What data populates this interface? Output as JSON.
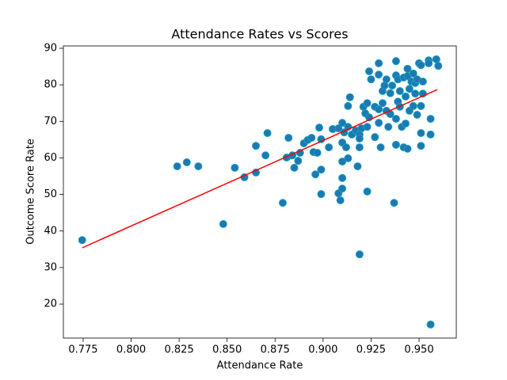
{
  "chart_data": {
    "type": "scatter",
    "title": "Attendance Rates vs Scores",
    "xlabel": "Attendance Rate",
    "ylabel": "Outcome Score Rate",
    "x": [
      0.7745,
      0.824,
      0.829,
      0.835,
      0.848,
      0.854,
      0.859,
      0.865,
      0.865,
      0.87,
      0.871,
      0.879,
      0.881,
      0.882,
      0.884,
      0.885,
      0.887,
      0.888,
      0.89,
      0.892,
      0.894,
      0.895,
      0.897,
      0.896,
      0.898,
      0.899,
      0.899,
      0.899,
      0.903,
      0.905,
      0.908,
      0.909,
      0.91,
      0.908,
      0.91,
      0.91,
      0.91,
      0.911,
      0.91,
      0.912,
      0.913,
      0.913,
      0.913,
      0.914,
      0.915,
      0.917,
      0.918,
      0.919,
      0.919,
      0.919,
      0.919,
      0.92,
      0.921,
      0.922,
      0.923,
      0.923,
      0.923,
      0.924,
      0.924,
      0.925,
      0.927,
      0.927,
      0.929,
      0.929,
      0.929,
      0.93,
      0.929,
      0.931,
      0.931,
      0.932,
      0.933,
      0.933,
      0.934,
      0.935,
      0.935,
      0.936,
      0.937,
      0.938,
      0.938,
      0.938,
      0.938,
      0.939,
      0.939,
      0.94,
      0.94,
      0.941,
      0.942,
      0.942,
      0.943,
      0.943,
      0.944,
      0.944,
      0.944,
      0.945,
      0.945,
      0.946,
      0.947,
      0.947,
      0.948,
      0.948,
      0.949,
      0.949,
      0.95,
      0.951,
      0.951,
      0.951,
      0.951,
      0.952,
      0.952,
      0.955,
      0.955,
      0.956,
      0.956,
      0.956,
      0.959,
      0.96
    ],
    "y": [
      37.5,
      57.7,
      58.8,
      57.7,
      41.9,
      57.3,
      54.7,
      56.0,
      63.3,
      60.7,
      66.8,
      47.7,
      60.1,
      65.5,
      60.7,
      57.3,
      59.2,
      61.4,
      64.0,
      64.9,
      65.5,
      61.6,
      61.4,
      55.5,
      68.3,
      65.1,
      56.8,
      50.1,
      62.9,
      67.9,
      50.3,
      48.4,
      64.2,
      68.1,
      51.6,
      54.5,
      59.0,
      67.0,
      69.6,
      62.9,
      74.2,
      59.9,
      68.5,
      76.6,
      66.4,
      67.5,
      57.7,
      66.4,
      65.3,
      33.6,
      62.9,
      68.1,
      74.0,
      72.2,
      50.8,
      75.0,
      68.5,
      83.7,
      71.1,
      81.5,
      74.0,
      65.7,
      73.3,
      69.6,
      85.9,
      62.9,
      82.8,
      78.3,
      75.0,
      79.8,
      72.9,
      81.5,
      68.5,
      77.7,
      72.0,
      79.8,
      47.7,
      86.5,
      82.6,
      63.6,
      70.7,
      75.4,
      81.5,
      74.0,
      78.3,
      68.5,
      82.0,
      62.9,
      76.8,
      69.4,
      62.5,
      84.4,
      82.4,
      72.9,
      78.9,
      80.9,
      83.1,
      74.2,
      77.6,
      80.5,
      81.5,
      71.8,
      85.9,
      66.8,
      74.2,
      85.4,
      63.3,
      80.9,
      77.6,
      86.7,
      85.9,
      70.7,
      66.4,
      14.4,
      87.0,
      85.2
    ],
    "color": "#1f77b4",
    "edgecolor": "#17a2b8",
    "fit_line": {
      "x": [
        0.7745,
        0.9595
      ],
      "y": [
        35.4,
        78.7
      ],
      "color": "#ff0000"
    },
    "xlim": [
      0.7647,
      0.9694
    ],
    "ylim": [
      10.7,
      90.65
    ],
    "xticks": [
      {
        "value": 0.775,
        "label": "0.775"
      },
      {
        "value": 0.8,
        "label": "0.800"
      },
      {
        "value": 0.825,
        "label": "0.825"
      },
      {
        "value": 0.85,
        "label": "0.850"
      },
      {
        "value": 0.875,
        "label": "0.875"
      },
      {
        "value": 0.9,
        "label": "0.900"
      },
      {
        "value": 0.925,
        "label": "0.925"
      },
      {
        "value": 0.95,
        "label": "0.950"
      }
    ],
    "yticks": [
      20,
      30,
      40,
      50,
      60,
      70,
      80,
      90
    ]
  }
}
